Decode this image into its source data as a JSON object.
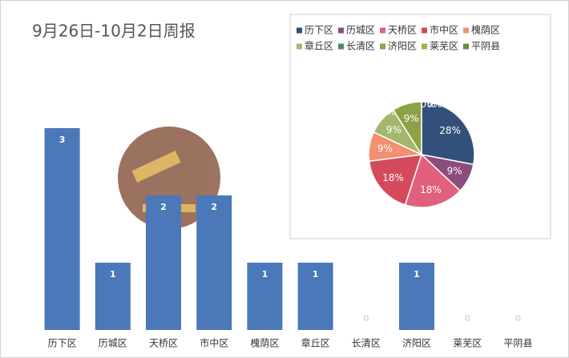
{
  "chart_data": [
    {
      "type": "bar",
      "title": "9月26日-10月2日周报",
      "categories": [
        "历下区",
        "历城区",
        "天桥区",
        "市中区",
        "槐荫区",
        "章丘区",
        "长清区",
        "济阳区",
        "莱芜区",
        "平阴县"
      ],
      "values": [
        3,
        1,
        2,
        2,
        1,
        1,
        0,
        1,
        0,
        0
      ],
      "color": "#4a78b8"
    },
    {
      "type": "pie",
      "categories": [
        "历下区",
        "历城区",
        "天桥区",
        "市中区",
        "槐荫区",
        "章丘区",
        "长清区",
        "济阳区",
        "莱芜区",
        "平阴县"
      ],
      "values": [
        28,
        9,
        18,
        18,
        9,
        9,
        0,
        9,
        0,
        0
      ],
      "value_labels": [
        "28%",
        "9%",
        "18%",
        "18%",
        "9%",
        "9%",
        "0%",
        "9%",
        "0%",
        "0%"
      ],
      "colors": [
        "#33507a",
        "#8c4c7c",
        "#e0607e",
        "#d44a5c",
        "#f29070",
        "#a3b86c",
        "#4f8a64",
        "#8da246",
        "#9fb24e",
        "#6b8c3c"
      ]
    }
  ]
}
